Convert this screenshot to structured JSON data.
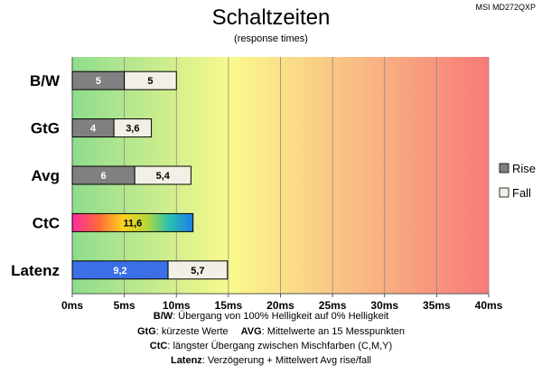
{
  "chart_data": {
    "type": "bar",
    "orientation": "horizontal",
    "stacked": true,
    "title": "Schaltzeiten",
    "subtitle": "(response times)",
    "model": "MSI MD272QXP",
    "categories": [
      "B/W",
      "GtG",
      "Avg",
      "CtC",
      "Latenz"
    ],
    "series": [
      {
        "name": "Rise",
        "color": "#808080",
        "values": [
          5,
          4,
          6,
          null,
          9.2
        ]
      },
      {
        "name": "Fall",
        "color": "#f2f0e6",
        "values": [
          5,
          3.6,
          5.4,
          null,
          5.7
        ]
      }
    ],
    "ctc_value": 11.6,
    "latenz_rise_color": "#3c6ee6",
    "value_labels": {
      "rise": [
        "5",
        "4",
        "6",
        null,
        "9,2"
      ],
      "fall": [
        "5",
        "3,6",
        "5,4",
        null,
        "5,7"
      ],
      "ctc": "11,6"
    },
    "xlim": [
      0,
      40
    ],
    "x_ticks": [
      0,
      5,
      10,
      15,
      20,
      25,
      30,
      35,
      40
    ],
    "x_tick_labels": [
      "0ms",
      "5ms",
      "10ms",
      "15ms",
      "20ms",
      "25ms",
      "30ms",
      "35ms",
      "40ms"
    ],
    "background_gradient": [
      "#8edc8e",
      "#fafa8c",
      "#f87a7a"
    ],
    "grid": true,
    "legend_position": "right",
    "legend": [
      "Rise",
      "Fall"
    ]
  },
  "footnotes": [
    {
      "key": "B/W",
      "text": ":  Übergang von 100% Helligkeit auf 0% Helligkeit"
    },
    {
      "key": "GtG",
      "text": ": kürzeste  Werte",
      "key2": "AVG",
      "text2": ": Mittelwerte  an 15 Messpunkten"
    },
    {
      "key": "CtC",
      "text": ": längster Übergang  zwischen Mischfarben (C,M,Y)"
    },
    {
      "key": "Latenz",
      "text": ": Verzögerung  + Mittelwert Avg rise/fall"
    }
  ]
}
